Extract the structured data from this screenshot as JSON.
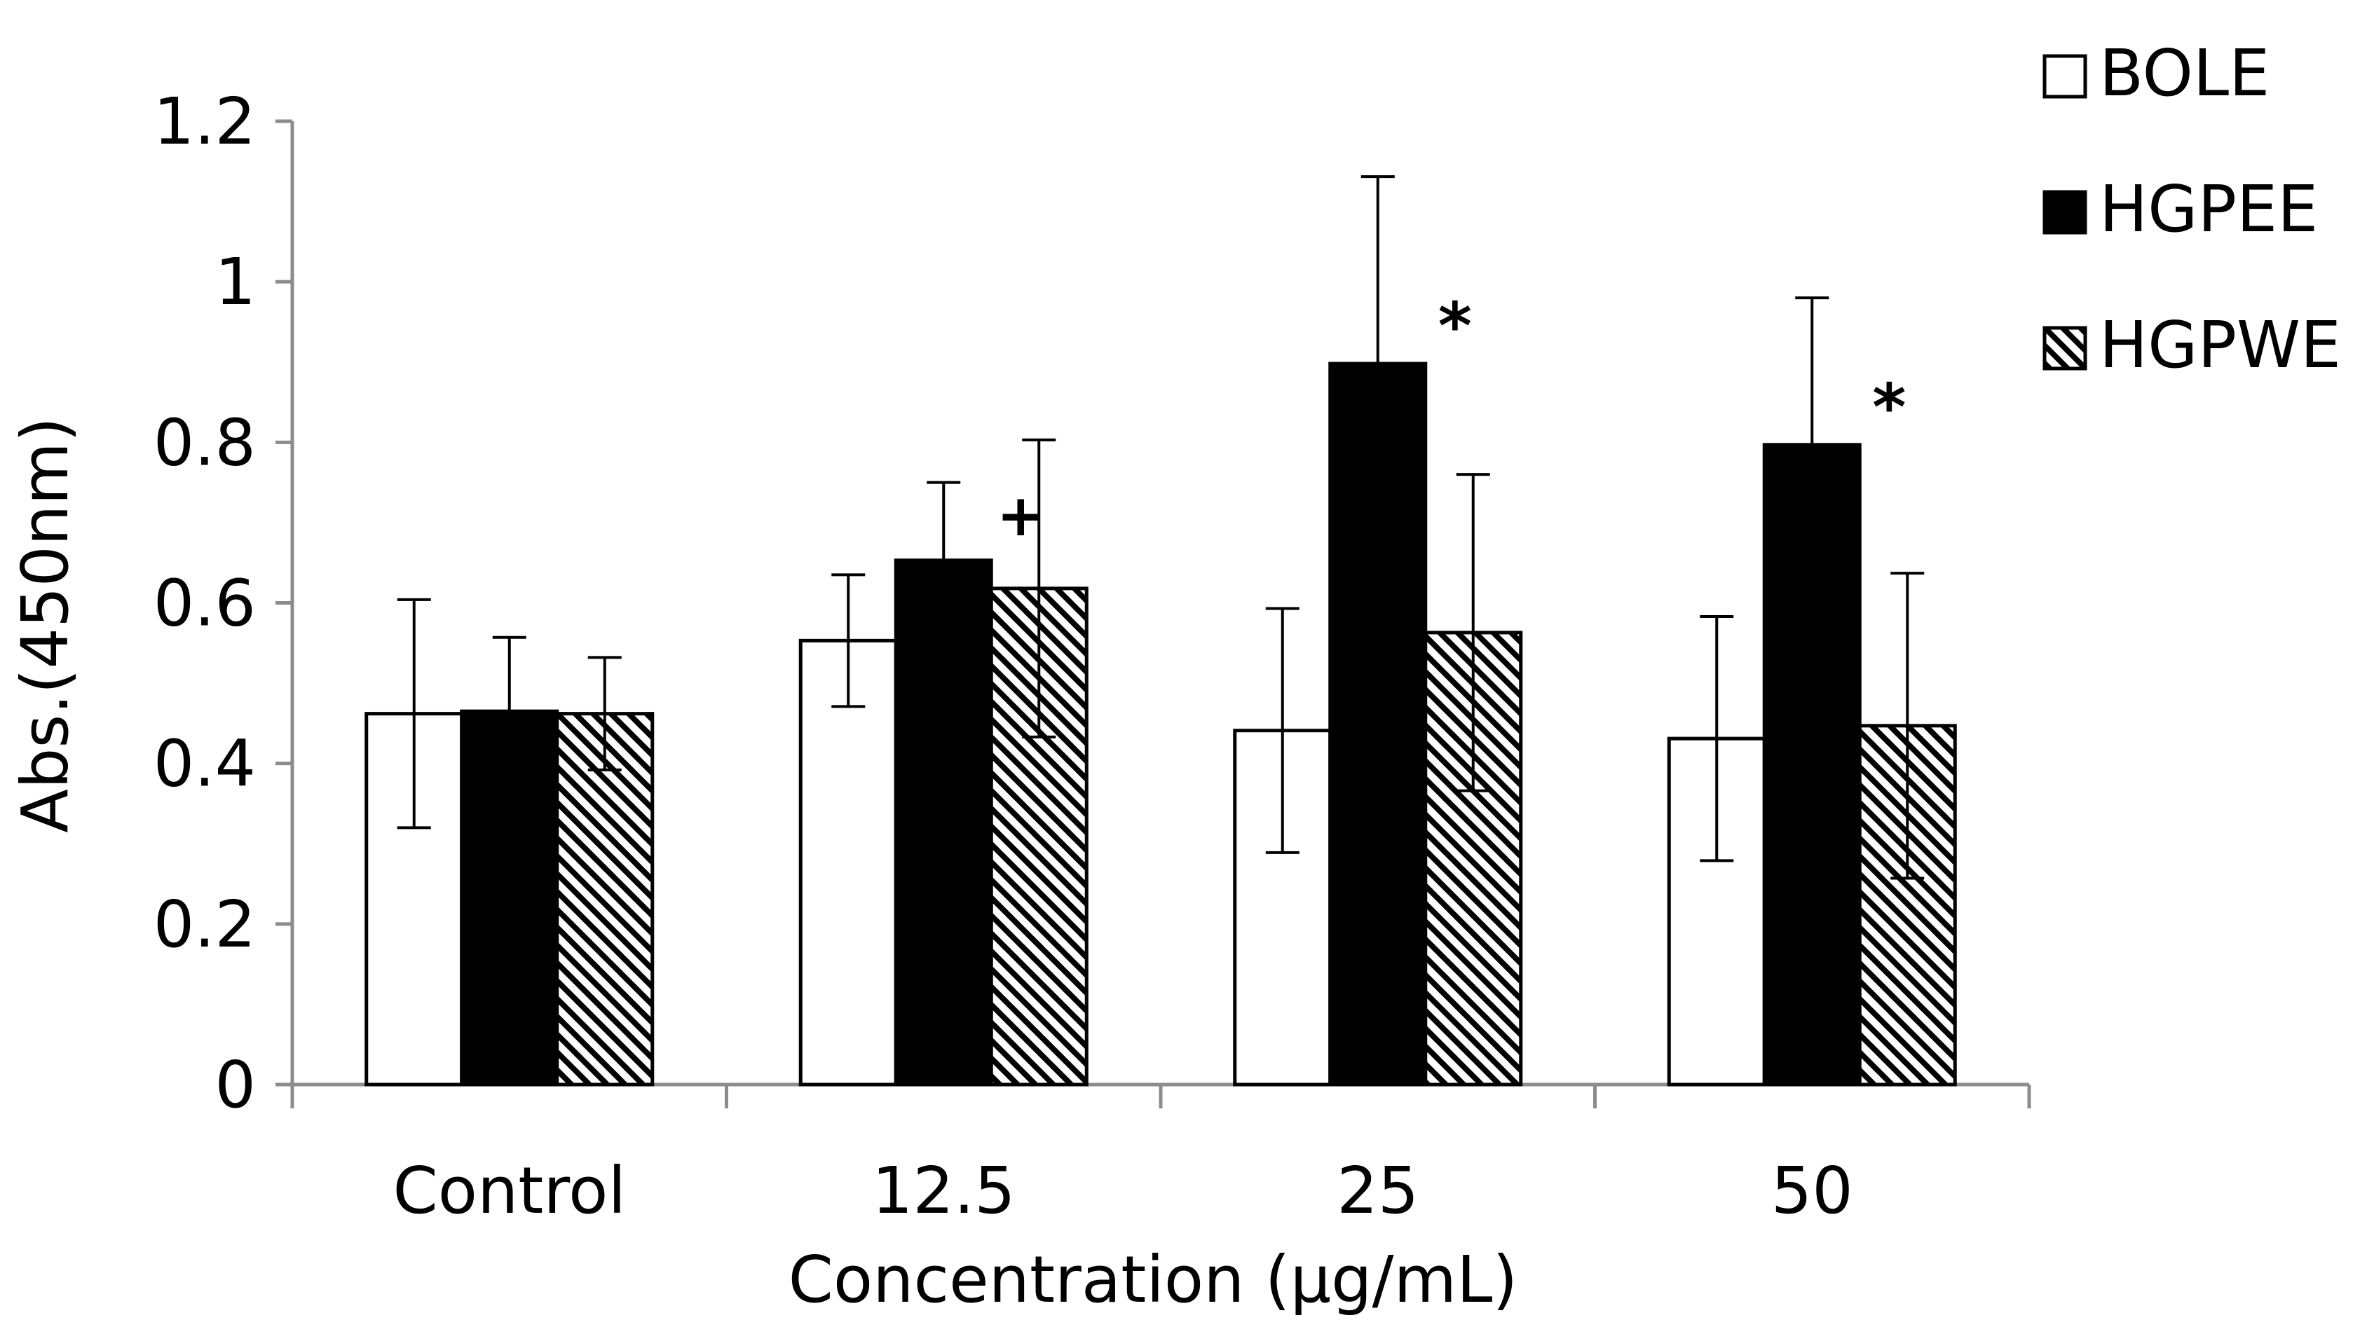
{
  "chart_data": {
    "type": "bar",
    "title": "",
    "xlabel": "Concentration (μg/mL)",
    "ylabel": "Abs.(450nm)",
    "ylim": [
      0,
      1.2
    ],
    "yticks": [
      0,
      0.2,
      0.4,
      0.6,
      0.8,
      1,
      1.2
    ],
    "ytick_labels": [
      "0",
      "0.2",
      "0.4",
      "0.6",
      "0.8",
      "1",
      "1.2"
    ],
    "grid": false,
    "legend_position": "top-right",
    "categories": [
      "Control",
      "12.5",
      "25",
      "50"
    ],
    "series": [
      {
        "name": "BOLE",
        "fill": "white",
        "values": [
          0.462,
          0.553,
          0.441,
          0.431
        ],
        "errors": [
          0.142,
          0.082,
          0.152,
          0.152
        ],
        "annotations": [
          "",
          "",
          "",
          ""
        ]
      },
      {
        "name": "HGPEE",
        "fill": "black",
        "values": [
          0.465,
          0.653,
          0.898,
          0.797
        ],
        "errors": [
          0.092,
          0.097,
          0.233,
          0.183
        ],
        "annotations": [
          "",
          "+",
          "*",
          "*"
        ]
      },
      {
        "name": "HGPWE",
        "fill": "hatched",
        "values": [
          0.462,
          0.618,
          0.563,
          0.447
        ],
        "errors": [
          0.07,
          0.185,
          0.197,
          0.19
        ],
        "annotations": [
          "",
          "",
          "",
          ""
        ]
      }
    ]
  },
  "colors": {
    "bar_stroke": "#000000",
    "black_fill": "#000000",
    "white_fill": "#ffffff",
    "hatch_line": "#000000",
    "axis": "#8c8c8c",
    "text": "#000000"
  }
}
